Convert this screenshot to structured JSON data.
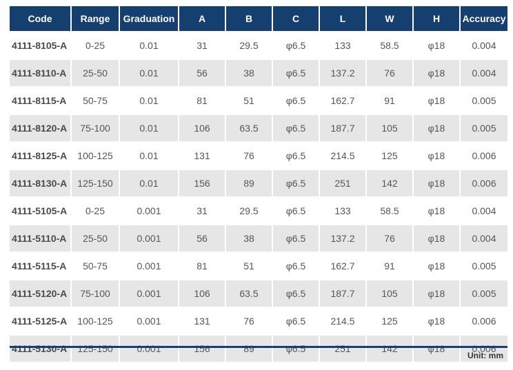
{
  "table": {
    "headers": [
      "Code",
      "Range",
      "Graduation",
      "A",
      "B",
      "C",
      "L",
      "W",
      "H",
      "Accuracy"
    ],
    "rows": [
      [
        "4111-8105-A",
        "0-25",
        "0.01",
        "31",
        "29.5",
        "φ6.5",
        "133",
        "58.5",
        "φ18",
        "0.004"
      ],
      [
        "4111-8110-A",
        "25-50",
        "0.01",
        "56",
        "38",
        "φ6.5",
        "137.2",
        "76",
        "φ18",
        "0.004"
      ],
      [
        "4111-8115-A",
        "50-75",
        "0.01",
        "81",
        "51",
        "φ6.5",
        "162.7",
        "91",
        "φ18",
        "0.005"
      ],
      [
        "4111-8120-A",
        "75-100",
        "0.01",
        "106",
        "63.5",
        "φ6.5",
        "187.7",
        "105",
        "φ18",
        "0.005"
      ],
      [
        "4111-8125-A",
        "100-125",
        "0.01",
        "131",
        "76",
        "φ6.5",
        "214.5",
        "125",
        "φ18",
        "0.006"
      ],
      [
        "4111-8130-A",
        "125-150",
        "0.01",
        "156",
        "89",
        "φ6.5",
        "251",
        "142",
        "φ18",
        "0.006"
      ],
      [
        "4111-5105-A",
        "0-25",
        "0.001",
        "31",
        "29.5",
        "φ6.5",
        "133",
        "58.5",
        "φ18",
        "0.004"
      ],
      [
        "4111-5110-A",
        "25-50",
        "0.001",
        "56",
        "38",
        "φ6.5",
        "137.2",
        "76",
        "φ18",
        "0.004"
      ],
      [
        "4111-5115-A",
        "50-75",
        "0.001",
        "81",
        "51",
        "φ6.5",
        "162.7",
        "91",
        "φ18",
        "0.005"
      ],
      [
        "4111-5120-A",
        "75-100",
        "0.001",
        "106",
        "63.5",
        "φ6.5",
        "187.7",
        "105",
        "φ18",
        "0.005"
      ],
      [
        "4111-5125-A",
        "100-125",
        "0.001",
        "131",
        "76",
        "φ6.5",
        "214.5",
        "125",
        "φ18",
        "0.006"
      ],
      [
        "4111-5130-A",
        "125-150",
        "0.001",
        "156",
        "89",
        "φ6.5",
        "251",
        "142",
        "φ18",
        "0.006"
      ]
    ]
  },
  "footer": {
    "unit_note": "Unit: mm"
  },
  "colors": {
    "header_bg": "#153f6e",
    "header_text": "#ffffff",
    "stripe_bg": "#e6e6e6",
    "rule": "#153f6e"
  }
}
